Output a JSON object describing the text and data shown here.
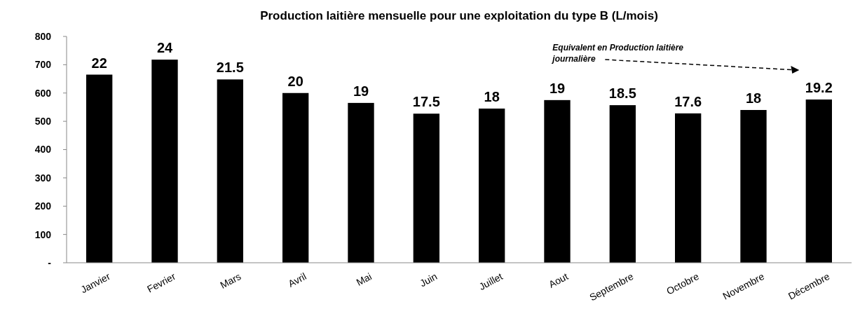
{
  "chart_data": {
    "type": "bar",
    "title": "Production laitière mensuelle pour une exploitation du type B (L/mois)",
    "categories": [
      "Janvier",
      "Fevrier",
      "Mars",
      "Avril",
      "Mai",
      "Juin",
      "Juillet",
      "Aout",
      "Septembre",
      "Octobre",
      "Novembre",
      "Décembre"
    ],
    "values": [
      665,
      718,
      648,
      600,
      565,
      527,
      545,
      575,
      557,
      528,
      540,
      577
    ],
    "color": "#000000",
    "ylim": [
      0,
      800
    ],
    "yticks": [
      {
        "value": 0,
        "label": "-"
      },
      100,
      200,
      300,
      400,
      500,
      600,
      700,
      800
    ],
    "grid": false,
    "annotations": [
      "Equivalent en Production laitière journalière",
      {
        "text": "22",
        "x": "Janvier",
        "y": 665
      },
      {
        "text": "24",
        "x": "Fevrier",
        "y": 718
      },
      {
        "text": "21.5",
        "x": "Mars",
        "y": 648
      },
      {
        "text": "20",
        "x": "Avril",
        "y": 600
      },
      {
        "text": "19",
        "x": "Mai",
        "y": 565
      },
      {
        "text": "17.5",
        "x": "Juin",
        "y": 527
      },
      {
        "text": "18",
        "x": "Juillet",
        "y": 545
      },
      {
        "text": "19",
        "x": "Aout",
        "y": 575
      },
      {
        "text": "18.5",
        "x": "Septembre",
        "y": 557
      },
      {
        "text": "17.6",
        "x": "Octobre",
        "y": 528
      },
      {
        "text": "18",
        "x": "Novembre",
        "y": 540
      },
      {
        "text": "19.2",
        "x": "Décembre",
        "y": 577
      }
    ]
  }
}
